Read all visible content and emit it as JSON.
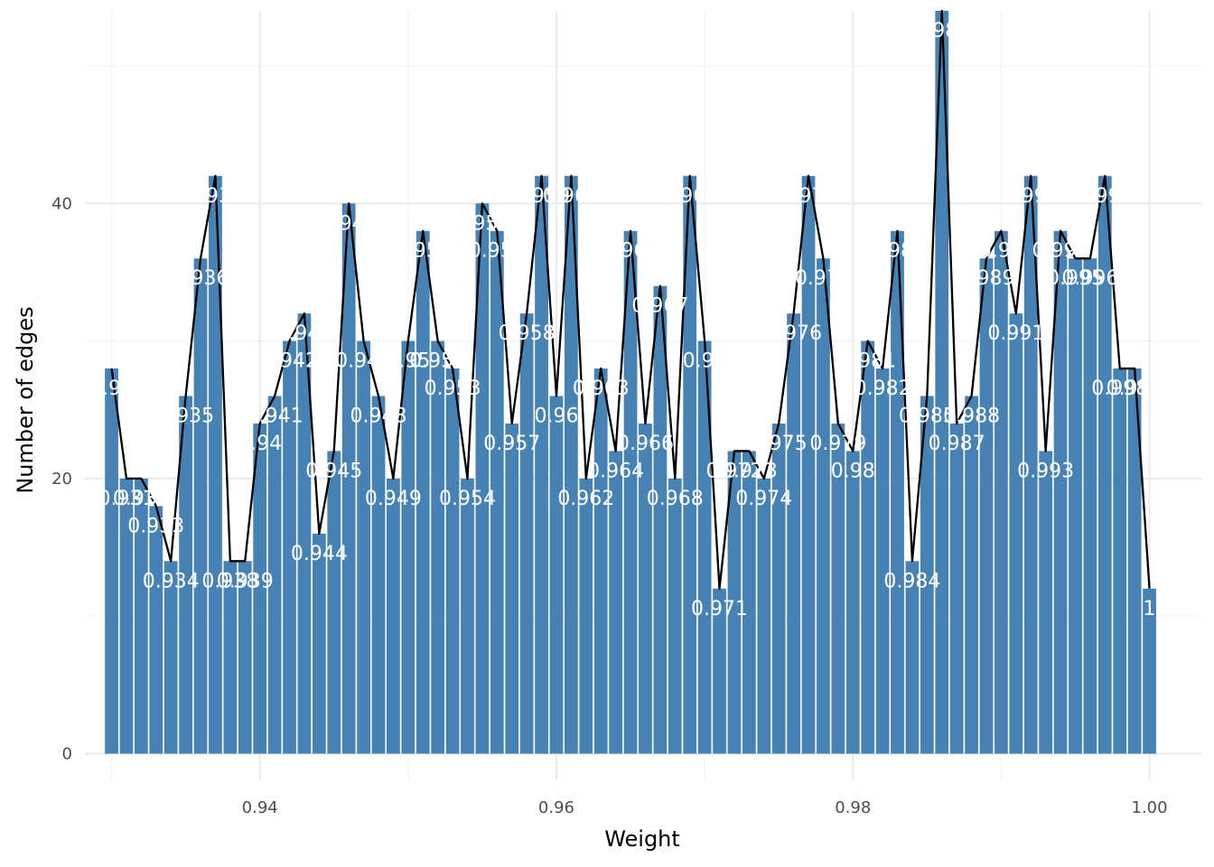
{
  "chart_data": {
    "type": "bar",
    "xlabel": "Weight",
    "ylabel": "Number of edges",
    "xlim": [
      0.9282,
      1.0035
    ],
    "ylim": [
      -2,
      54
    ],
    "x_ticks": [
      0.94,
      0.96,
      0.98,
      1.0
    ],
    "x_tick_labels": [
      "0.94",
      "0.96",
      "0.98",
      "1.00"
    ],
    "y_ticks": [
      0,
      20,
      40
    ],
    "y_tick_labels": [
      "0",
      "20",
      "40"
    ],
    "grid": true,
    "bar_color": "#4682B4",
    "line_color": "#000000",
    "label_color": "#FFFFFF",
    "overlay": "line through bar tops",
    "x": [
      0.93,
      0.931,
      0.932,
      0.933,
      0.934,
      0.935,
      0.936,
      0.937,
      0.938,
      0.939,
      0.94,
      0.941,
      0.942,
      0.943,
      0.944,
      0.945,
      0.946,
      0.947,
      0.948,
      0.949,
      0.95,
      0.951,
      0.952,
      0.953,
      0.954,
      0.955,
      0.956,
      0.957,
      0.958,
      0.959,
      0.96,
      0.961,
      0.962,
      0.963,
      0.964,
      0.965,
      0.966,
      0.967,
      0.968,
      0.969,
      0.97,
      0.971,
      0.972,
      0.973,
      0.974,
      0.975,
      0.976,
      0.977,
      0.978,
      0.979,
      0.98,
      0.981,
      0.982,
      0.983,
      0.984,
      0.985,
      0.986,
      0.987,
      0.988,
      0.989,
      0.99,
      0.991,
      0.992,
      0.993,
      0.994,
      0.995,
      0.996,
      0.997,
      0.998,
      0.999,
      1.0
    ],
    "labels": [
      "0.93",
      "0.931",
      "0.932",
      "0.933",
      "0.934",
      "0.935",
      "0.936",
      "0.937",
      "0.938",
      "0.939",
      "0.94",
      "0.941",
      "0.942",
      "0.943",
      "0.944",
      "0.945",
      "0.946",
      "0.947",
      "0.948",
      "0.949",
      "0.95",
      "0.951",
      "0.952",
      "0.953",
      "0.954",
      "0.955",
      "0.956",
      "0.957",
      "0.958",
      "0.959",
      "0.96",
      "0.961",
      "0.962",
      "0.963",
      "0.964",
      "0.965",
      "0.966",
      "0.967",
      "0.968",
      "0.969",
      "0.97",
      "0.971",
      "0.972",
      "0.973",
      "0.974",
      "0.975",
      "0.976",
      "0.977",
      "0.978",
      "0.979",
      "0.98",
      "0.981",
      "0.982",
      "0.983",
      "0.984",
      "0.985",
      "0.986",
      "0.987",
      "0.988",
      "0.989",
      "0.99",
      "0.991",
      "0.992",
      "0.993",
      "0.994",
      "0.995",
      "0.996",
      "0.997",
      "0.998",
      "0.999",
      "1"
    ],
    "values": [
      28,
      20,
      20,
      18,
      14,
      26,
      36,
      42,
      14,
      14,
      24,
      26,
      30,
      32,
      16,
      22,
      40,
      30,
      26,
      20,
      30,
      38,
      30,
      28,
      20,
      40,
      38,
      24,
      32,
      42,
      26,
      42,
      20,
      28,
      22,
      38,
      24,
      34,
      20,
      42,
      30,
      12,
      22,
      22,
      20,
      24,
      32,
      42,
      36,
      24,
      22,
      30,
      28,
      38,
      14,
      26,
      54,
      24,
      26,
      36,
      38,
      32,
      42,
      22,
      38,
      36,
      36,
      42,
      28,
      28,
      12
    ]
  }
}
